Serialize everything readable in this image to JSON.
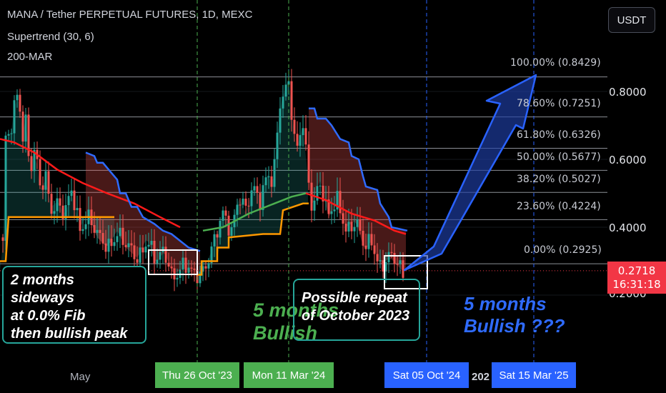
{
  "legend": {
    "title": "MANA / Tether PERPETUAL FUTURES, 1D, MEXC",
    "indicator1": "Supertrend (30, 6)",
    "indicator2": "200-MAR"
  },
  "currency_button": "USDT",
  "price_axis": [
    "0.8000",
    "0.6000",
    "0.4000",
    "0.2000"
  ],
  "current_price": {
    "value": "0.2718",
    "countdown": "16:31:18",
    "color": "#f23645"
  },
  "time_axis": {
    "month_label": "May",
    "partial_year": "202"
  },
  "date_tags": [
    {
      "label": "Thu 26 Oct '23",
      "color": "#4caf50"
    },
    {
      "label": "Mon 11 Mar '24",
      "color": "#4caf50"
    },
    {
      "label": "Sat 05 Oct '24",
      "color": "#2962ff"
    },
    {
      "label": "Sat 15 Mar '25",
      "color": "#2962ff"
    }
  ],
  "fib_levels": [
    {
      "label": "100.00% (0.8429)",
      "price": 0.8429
    },
    {
      "label": "78.60% (0.7251)",
      "price": 0.7251
    },
    {
      "label": "61.80% (0.6326)",
      "price": 0.6326
    },
    {
      "label": "50.00% (0.5677)",
      "price": 0.5677
    },
    {
      "label": "38.20% (0.5027)",
      "price": 0.5027
    },
    {
      "label": "23.60% (0.4224)",
      "price": 0.4224
    },
    {
      "label": "0.00% (0.2925)",
      "price": 0.2925
    }
  ],
  "annotations": {
    "box_note_lines": [
      "2 months sideways",
      "at 0.0% Fib",
      "then bullish peak"
    ],
    "repeat_lines": [
      "Possible repeat",
      "of October 2023"
    ],
    "green_lines": [
      "5 months",
      "Bullish"
    ],
    "blue_lines": [
      "5 months",
      "Bullish ???"
    ]
  },
  "colors": {
    "bull": "#26a69a",
    "bear": "#ef5350",
    "ma": "#ff1a1a",
    "supertrend_up": "#ff9800",
    "supertrend_down": "#2f6bff",
    "supertrend_up_green": "#4caf50",
    "arrow": "#2962ff"
  },
  "chart_data": {
    "type": "candlestick",
    "symbol": "MANA / Tether PERPETUAL FUTURES",
    "interval": "1D",
    "price_scale": {
      "min": 0.18,
      "max": 0.9,
      "ticks": [
        0.2,
        0.4,
        0.6,
        0.8
      ]
    },
    "fib_retracement": {
      "low": 0.2925,
      "high": 0.8429
    },
    "price_path": [
      [
        0.4,
        0.35
      ],
      [
        0.45,
        0.55
      ],
      [
        0.95,
        0.7
      ],
      [
        1.45,
        0.62
      ],
      [
        1.8,
        0.78
      ],
      [
        2.2,
        0.72
      ],
      [
        2.6,
        0.84
      ],
      [
        3.1,
        0.64
      ],
      [
        3.5,
        0.76
      ],
      [
        4.1,
        0.58
      ],
      [
        5.0,
        0.62
      ],
      [
        5.6,
        0.51
      ],
      [
        6.4,
        0.54
      ],
      [
        7.2,
        0.46
      ],
      [
        8.2,
        0.48
      ],
      [
        9.0,
        0.43
      ],
      [
        10.0,
        0.5
      ],
      [
        11.2,
        0.4
      ],
      [
        12.3,
        0.44
      ],
      [
        13.6,
        0.37
      ],
      [
        15.0,
        0.34
      ],
      [
        16.4,
        0.39
      ],
      [
        17.6,
        0.34
      ],
      [
        19.2,
        0.31
      ],
      [
        20.6,
        0.37
      ],
      [
        21.8,
        0.29
      ],
      [
        23.0,
        0.33
      ],
      [
        24.2,
        0.26
      ],
      [
        25.7,
        0.28
      ],
      [
        27.2,
        0.26
      ],
      [
        28.8,
        0.29
      ],
      [
        30.0,
        0.35
      ],
      [
        31.2,
        0.44
      ],
      [
        32.4,
        0.4
      ],
      [
        33.4,
        0.49
      ],
      [
        34.4,
        0.44
      ],
      [
        35.4,
        0.52
      ],
      [
        36.4,
        0.49
      ],
      [
        37.4,
        0.56
      ],
      [
        38.2,
        0.52
      ],
      [
        39.2,
        0.76
      ],
      [
        40.4,
        0.84
      ],
      [
        41.4,
        0.62
      ],
      [
        42.4,
        0.7
      ],
      [
        43.0,
        0.56
      ],
      [
        43.6,
        0.46
      ],
      [
        44.8,
        0.54
      ],
      [
        46.0,
        0.43
      ],
      [
        47.2,
        0.47
      ],
      [
        48.4,
        0.4
      ],
      [
        49.8,
        0.42
      ],
      [
        51.0,
        0.33
      ],
      [
        52.0,
        0.36
      ],
      [
        53.2,
        0.29
      ],
      [
        54.6,
        0.31
      ],
      [
        56.4,
        0.27
      ]
    ],
    "moving_average_200": [
      [
        0.0,
        0.66
      ],
      [
        2.0,
        0.65
      ],
      [
        4.8,
        0.62
      ],
      [
        8.0,
        0.57
      ],
      [
        11.6,
        0.53
      ],
      [
        15.0,
        0.5
      ],
      [
        18.8,
        0.47
      ],
      [
        22.4,
        0.43
      ],
      [
        25.2,
        0.4
      ],
      [
        28.4,
        0.39
      ],
      [
        31.2,
        0.4
      ],
      [
        34.8,
        0.44
      ],
      [
        38.4,
        0.47
      ],
      [
        40.8,
        0.49
      ],
      [
        42.8,
        0.5
      ],
      [
        45.6,
        0.48
      ],
      [
        49.2,
        0.44
      ],
      [
        52.4,
        0.42
      ],
      [
        55.2,
        0.39
      ],
      [
        56.8,
        0.38
      ]
    ],
    "supertrend": [
      {
        "direction": "up",
        "points": [
          [
            0.0,
            0.3
          ],
          [
            0.8,
            0.3
          ],
          [
            1.2,
            0.43
          ],
          [
            16.0,
            0.43
          ]
        ]
      },
      {
        "direction": "down",
        "points": [
          [
            12.0,
            0.62
          ],
          [
            13.2,
            0.61
          ],
          [
            13.6,
            0.59
          ],
          [
            14.4,
            0.59
          ],
          [
            15.2,
            0.57
          ],
          [
            16.4,
            0.54
          ],
          [
            16.8,
            0.5
          ],
          [
            17.6,
            0.5
          ],
          [
            18.4,
            0.46
          ],
          [
            19.2,
            0.46
          ],
          [
            20.0,
            0.43
          ],
          [
            21.6,
            0.41
          ],
          [
            22.8,
            0.39
          ],
          [
            24.0,
            0.38
          ],
          [
            25.2,
            0.36
          ],
          [
            26.4,
            0.34
          ],
          [
            28.0,
            0.33
          ]
        ]
      },
      {
        "direction": "up",
        "points": [
          [
            27.5,
            0.26
          ],
          [
            28.2,
            0.26
          ],
          [
            28.2,
            0.3
          ],
          [
            30.4,
            0.3
          ],
          [
            30.4,
            0.34
          ],
          [
            32.0,
            0.34
          ],
          [
            32.0,
            0.37
          ],
          [
            36.8,
            0.38
          ],
          [
            39.2,
            0.38
          ],
          [
            39.6,
            0.45
          ],
          [
            42.4,
            0.47
          ],
          [
            43.2,
            0.47
          ]
        ]
      },
      {
        "direction": "down",
        "points": [
          [
            43.2,
            0.75
          ],
          [
            44.0,
            0.75
          ],
          [
            44.4,
            0.72
          ],
          [
            45.6,
            0.72
          ],
          [
            46.4,
            0.7
          ],
          [
            47.6,
            0.66
          ],
          [
            48.8,
            0.65
          ],
          [
            49.2,
            0.61
          ],
          [
            50.2,
            0.6
          ],
          [
            50.8,
            0.55
          ],
          [
            51.2,
            0.52
          ],
          [
            52.8,
            0.51
          ],
          [
            53.2,
            0.47
          ],
          [
            54.4,
            0.43
          ],
          [
            54.8,
            0.4
          ],
          [
            57.0,
            0.39
          ]
        ]
      }
    ],
    "event_dates": [
      "Thu 26 Oct '23",
      "Mon 11 Mar '24",
      "Sat 05 Oct '24",
      "Sat 15 Mar '25"
    ]
  }
}
